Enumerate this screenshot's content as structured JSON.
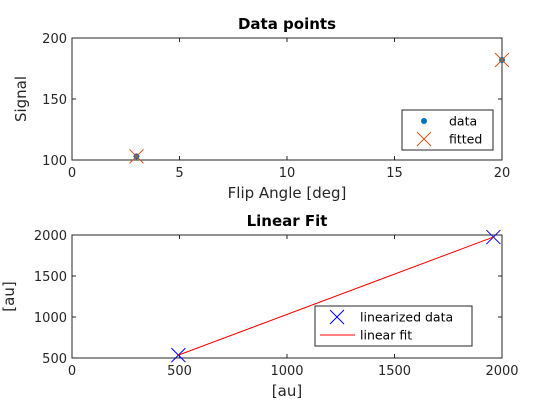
{
  "chart_data": [
    {
      "type": "scatter",
      "title": "Data points",
      "xlabel": "Flip Angle [deg]",
      "ylabel": "Signal",
      "xlim": [
        0,
        20
      ],
      "ylim": [
        100,
        200
      ],
      "xticks": [
        0,
        5,
        10,
        15,
        20
      ],
      "yticks": [
        100,
        150,
        200
      ],
      "grid": false,
      "legend_position": "bottom-right",
      "series": [
        {
          "name": "data",
          "marker": "dot",
          "color": "#0072BD",
          "x": [
            3,
            20
          ],
          "y": [
            103,
            182
          ]
        },
        {
          "name": "fitted",
          "marker": "x",
          "color": "#D95319",
          "x": [
            3,
            20
          ],
          "y": [
            103,
            182
          ]
        }
      ]
    },
    {
      "type": "line",
      "title": "Linear Fit",
      "xlabel": "[au]",
      "ylabel": "[au]",
      "xlim": [
        0,
        2000
      ],
      "ylim": [
        500,
        2000
      ],
      "xticks": [
        0,
        500,
        1000,
        1500,
        2000
      ],
      "yticks": [
        500,
        1000,
        1500,
        2000
      ],
      "grid": false,
      "legend_position": "bottom-right",
      "series": [
        {
          "name": "linearized data",
          "marker": "x",
          "color": "#0000FF",
          "x": [
            495,
            1960
          ],
          "y": [
            535,
            1975
          ]
        },
        {
          "name": "linear fit",
          "marker": "line",
          "color": "#FF0000",
          "x": [
            495,
            1960
          ],
          "y": [
            535,
            1975
          ]
        }
      ]
    }
  ]
}
